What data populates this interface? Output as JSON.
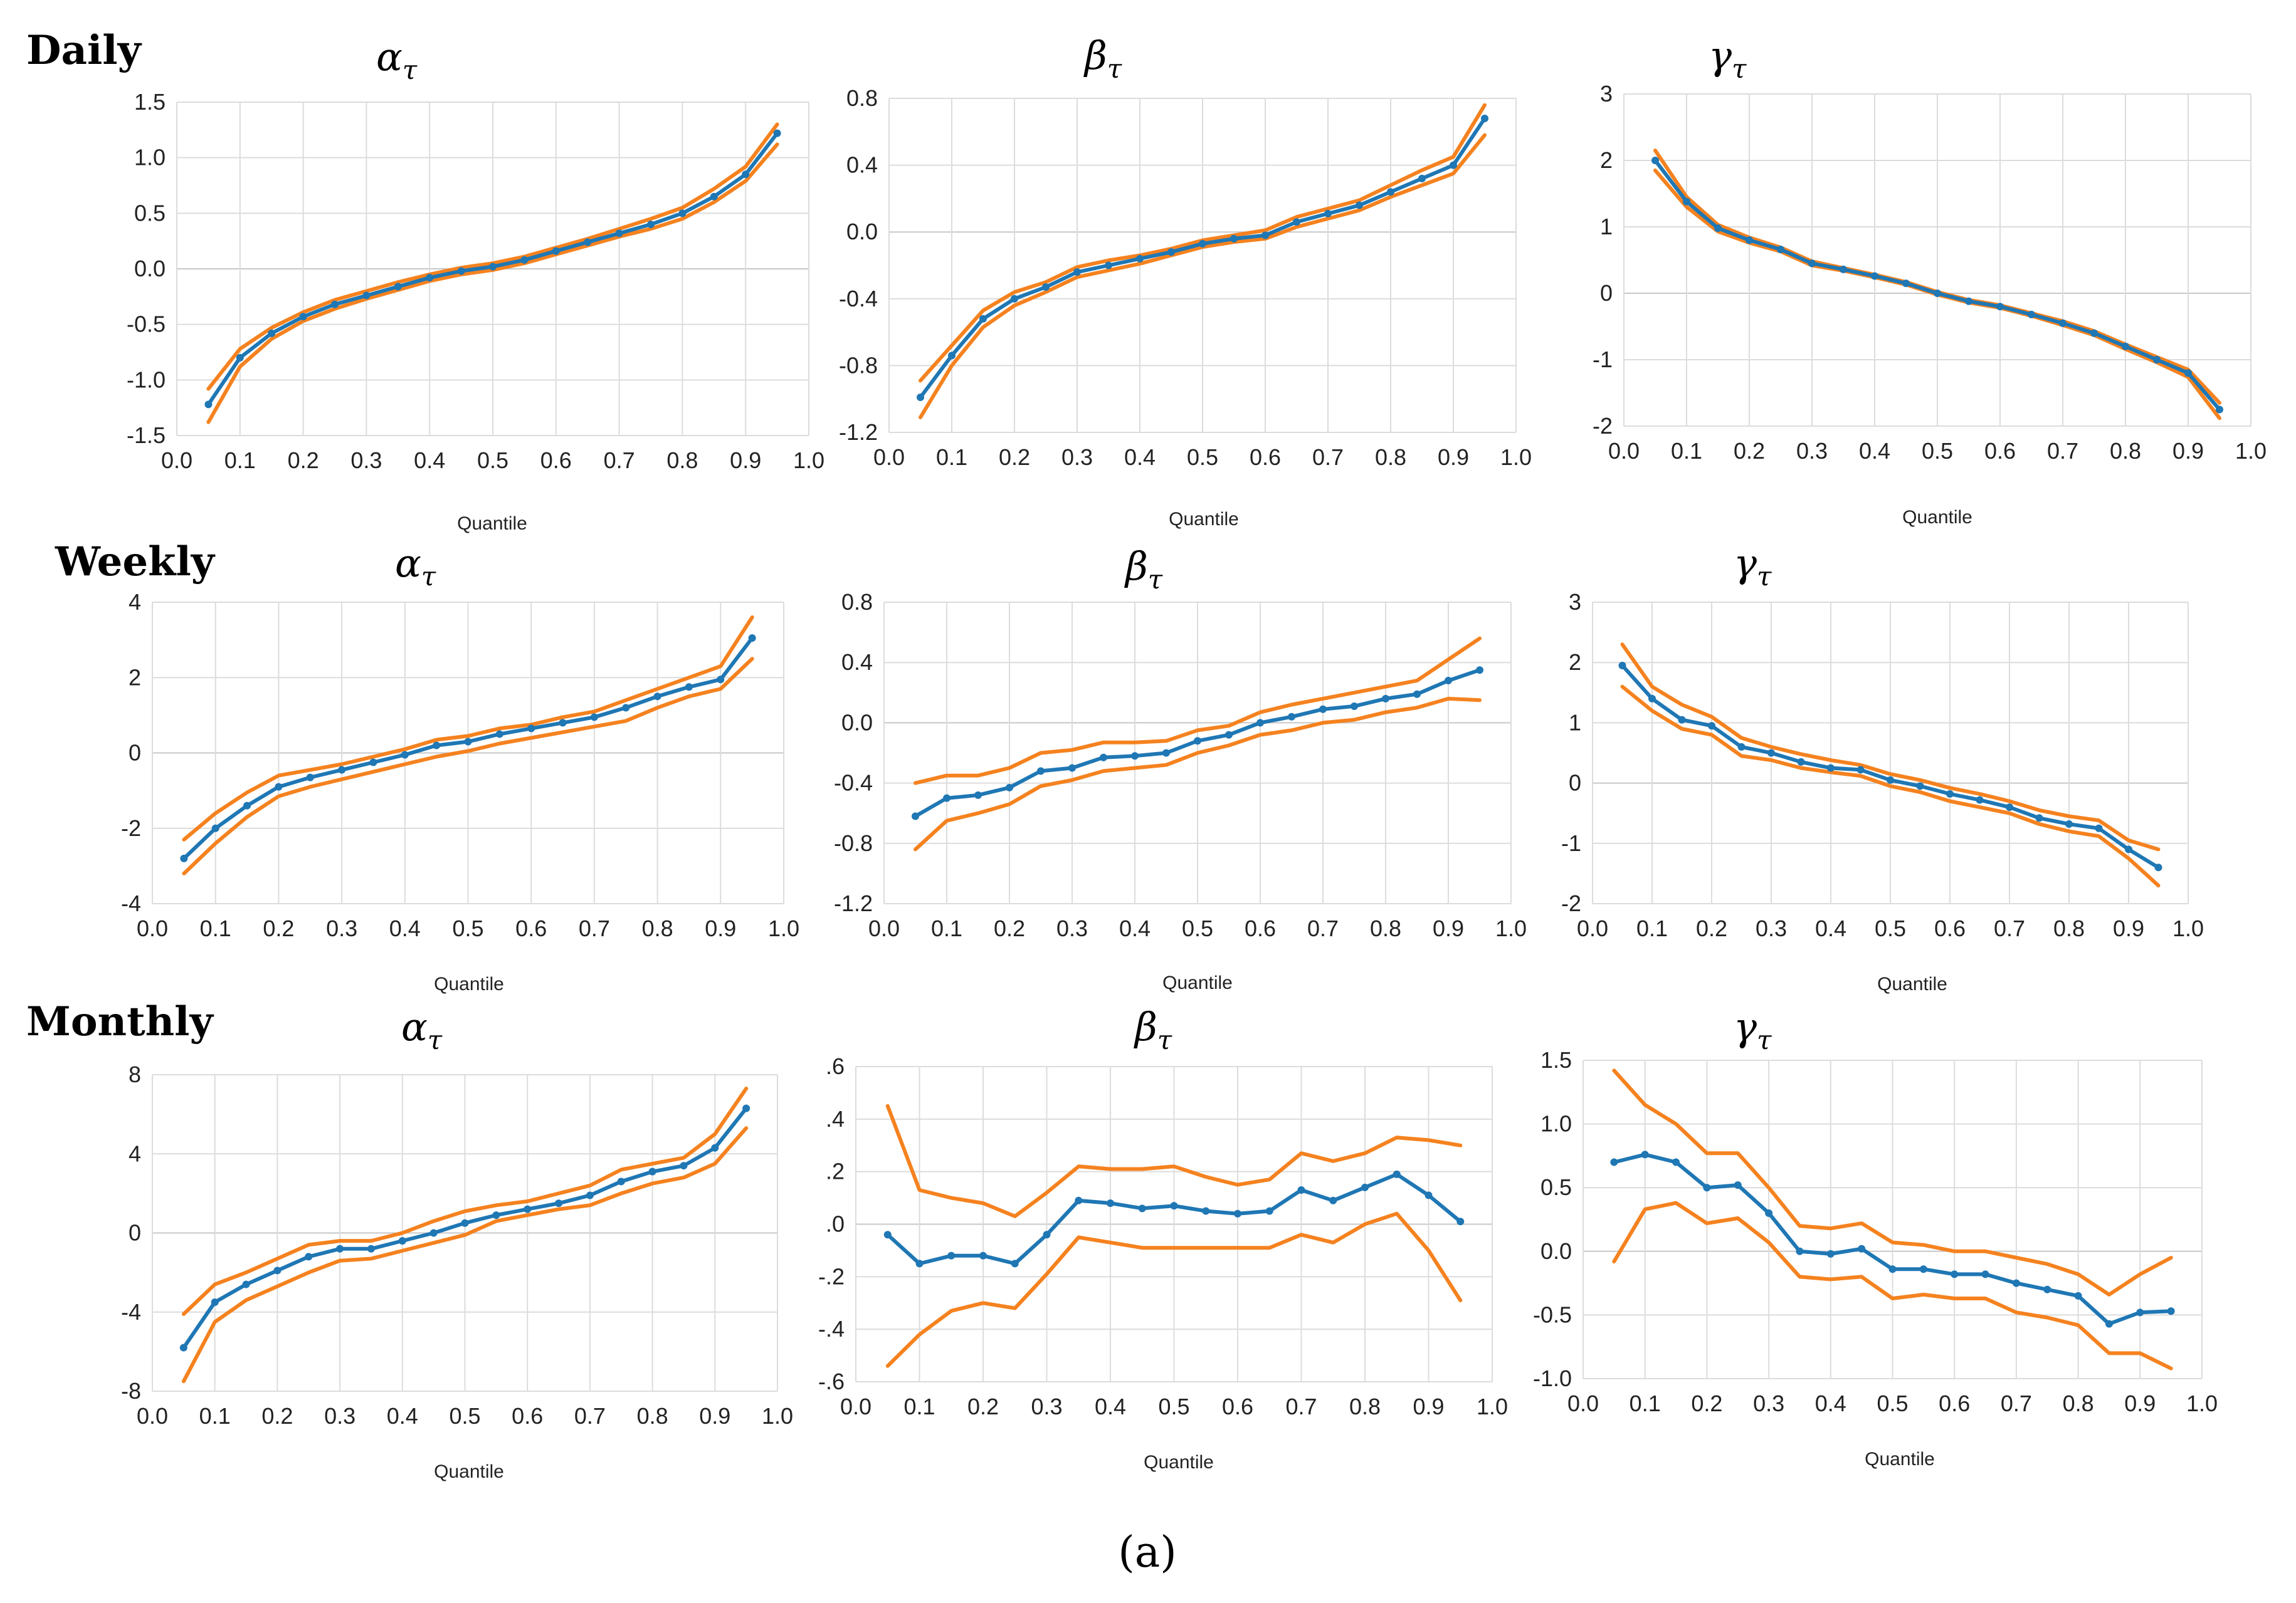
{
  "figure_caption": "(a)",
  "colors": {
    "estimate": "#1F77B4",
    "band": "#F5821F"
  },
  "row_labels": [
    "Daily",
    "Weekly",
    "Monthly"
  ],
  "chart_data": [
    {
      "id": "daily-alpha",
      "row": "Daily",
      "type": "line",
      "title": "α",
      "title_sub": "τ",
      "xlabel": "Quantile",
      "xlim": [
        0,
        1
      ],
      "xticks": [
        "0.0",
        "0.1",
        "0.2",
        "0.3",
        "0.4",
        "0.5",
        "0.6",
        "0.7",
        "0.8",
        "0.9",
        "1.0"
      ],
      "ylim": [
        -1.5,
        1.5
      ],
      "yticks": [
        "-1.5",
        "-1.0",
        "-0.5",
        "0.0",
        "0.5",
        "1.0",
        "1.5"
      ],
      "x": [
        0.05,
        0.1,
        0.15,
        0.2,
        0.25,
        0.3,
        0.35,
        0.4,
        0.45,
        0.5,
        0.55,
        0.6,
        0.65,
        0.7,
        0.75,
        0.8,
        0.85,
        0.9,
        0.95
      ],
      "series": [
        {
          "name": "estimate",
          "values": [
            -1.22,
            -0.8,
            -0.58,
            -0.43,
            -0.32,
            -0.24,
            -0.16,
            -0.08,
            -0.02,
            0.02,
            0.08,
            0.16,
            0.24,
            0.32,
            0.4,
            0.5,
            0.65,
            0.85,
            1.22
          ]
        },
        {
          "name": "upper",
          "values": [
            -1.08,
            -0.72,
            -0.53,
            -0.39,
            -0.28,
            -0.2,
            -0.12,
            -0.05,
            0.01,
            0.05,
            0.11,
            0.19,
            0.27,
            0.36,
            0.45,
            0.55,
            0.72,
            0.92,
            1.3
          ]
        },
        {
          "name": "lower",
          "values": [
            -1.38,
            -0.88,
            -0.63,
            -0.47,
            -0.36,
            -0.27,
            -0.19,
            -0.11,
            -0.05,
            -0.01,
            0.05,
            0.13,
            0.21,
            0.29,
            0.36,
            0.45,
            0.6,
            0.79,
            1.12
          ]
        }
      ]
    },
    {
      "id": "daily-beta",
      "row": "Daily",
      "type": "line",
      "title": "β",
      "title_sub": "τ",
      "xlabel": "Quantile",
      "xlim": [
        0,
        1
      ],
      "xticks": [
        "0.0",
        "0.1",
        "0.2",
        "0.3",
        "0.4",
        "0.5",
        "0.6",
        "0.7",
        "0.8",
        "0.9",
        "1.0"
      ],
      "ylim": [
        -1.2,
        0.8
      ],
      "yticks": [
        "-1.2",
        "-0.8",
        "-0.4",
        "0.0",
        "0.4",
        "0.8"
      ],
      "x": [
        0.05,
        0.1,
        0.15,
        0.2,
        0.25,
        0.3,
        0.35,
        0.4,
        0.45,
        0.5,
        0.55,
        0.6,
        0.65,
        0.7,
        0.75,
        0.8,
        0.85,
        0.9,
        0.95
      ],
      "series": [
        {
          "name": "estimate",
          "values": [
            -0.99,
            -0.74,
            -0.52,
            -0.4,
            -0.33,
            -0.24,
            -0.2,
            -0.16,
            -0.12,
            -0.07,
            -0.04,
            -0.02,
            0.06,
            0.11,
            0.16,
            0.24,
            0.32,
            0.4,
            0.68
          ]
        },
        {
          "name": "upper",
          "values": [
            -0.89,
            -0.68,
            -0.47,
            -0.36,
            -0.3,
            -0.21,
            -0.17,
            -0.14,
            -0.1,
            -0.05,
            -0.02,
            0.01,
            0.09,
            0.14,
            0.19,
            0.28,
            0.37,
            0.45,
            0.76
          ]
        },
        {
          "name": "lower",
          "values": [
            -1.11,
            -0.8,
            -0.57,
            -0.44,
            -0.36,
            -0.27,
            -0.23,
            -0.19,
            -0.14,
            -0.09,
            -0.06,
            -0.04,
            0.03,
            0.08,
            0.13,
            0.21,
            0.28,
            0.35,
            0.58
          ]
        }
      ]
    },
    {
      "id": "daily-gamma",
      "row": "Daily",
      "type": "line",
      "title": "γ",
      "title_sub": "τ",
      "xlabel": "Quantile",
      "xlim": [
        0,
        1
      ],
      "xticks": [
        "0.0",
        "0.1",
        "0.2",
        "0.3",
        "0.4",
        "0.5",
        "0.6",
        "0.7",
        "0.8",
        "0.9",
        "1.0"
      ],
      "ylim": [
        -2,
        3
      ],
      "yticks": [
        "-2",
        "-1",
        "0",
        "1",
        "2",
        "3"
      ],
      "x": [
        0.05,
        0.1,
        0.15,
        0.2,
        0.25,
        0.3,
        0.35,
        0.4,
        0.45,
        0.5,
        0.55,
        0.6,
        0.65,
        0.7,
        0.75,
        0.8,
        0.85,
        0.9,
        0.95
      ],
      "series": [
        {
          "name": "estimate",
          "values": [
            2.0,
            1.38,
            0.98,
            0.8,
            0.66,
            0.45,
            0.36,
            0.26,
            0.15,
            0.0,
            -0.12,
            -0.2,
            -0.32,
            -0.45,
            -0.6,
            -0.8,
            -1.0,
            -1.2,
            -1.75
          ]
        },
        {
          "name": "upper",
          "values": [
            2.15,
            1.45,
            1.03,
            0.84,
            0.69,
            0.48,
            0.38,
            0.28,
            0.17,
            0.02,
            -0.1,
            -0.18,
            -0.3,
            -0.42,
            -0.57,
            -0.77,
            -0.96,
            -1.15,
            -1.65
          ]
        },
        {
          "name": "lower",
          "values": [
            1.85,
            1.3,
            0.93,
            0.76,
            0.63,
            0.42,
            0.34,
            0.24,
            0.13,
            -0.02,
            -0.14,
            -0.22,
            -0.34,
            -0.48,
            -0.63,
            -0.84,
            -1.04,
            -1.26,
            -1.88
          ]
        }
      ]
    },
    {
      "id": "weekly-alpha",
      "row": "Weekly",
      "type": "line",
      "title": "α",
      "title_sub": "τ",
      "xlabel": "Quantile",
      "xlim": [
        0,
        1
      ],
      "xticks": [
        "0.0",
        "0.1",
        "0.2",
        "0.3",
        "0.4",
        "0.5",
        "0.6",
        "0.7",
        "0.8",
        "0.9",
        "1.0"
      ],
      "ylim": [
        -4,
        4
      ],
      "yticks": [
        "-4",
        "-2",
        "0",
        "2",
        "4"
      ],
      "x": [
        0.05,
        0.1,
        0.15,
        0.2,
        0.25,
        0.3,
        0.35,
        0.4,
        0.45,
        0.5,
        0.55,
        0.6,
        0.65,
        0.7,
        0.75,
        0.8,
        0.85,
        0.9,
        0.95
      ],
      "series": [
        {
          "name": "estimate",
          "values": [
            -2.8,
            -2.0,
            -1.4,
            -0.9,
            -0.65,
            -0.45,
            -0.25,
            -0.05,
            0.2,
            0.3,
            0.5,
            0.65,
            0.8,
            0.95,
            1.2,
            1.5,
            1.75,
            1.95,
            3.05
          ]
        },
        {
          "name": "upper",
          "values": [
            -2.3,
            -1.6,
            -1.05,
            -0.6,
            -0.45,
            -0.3,
            -0.1,
            0.1,
            0.35,
            0.45,
            0.65,
            0.75,
            0.95,
            1.1,
            1.4,
            1.7,
            2.0,
            2.3,
            3.6
          ]
        },
        {
          "name": "lower",
          "values": [
            -3.2,
            -2.4,
            -1.7,
            -1.15,
            -0.9,
            -0.7,
            -0.5,
            -0.3,
            -0.1,
            0.05,
            0.25,
            0.4,
            0.55,
            0.7,
            0.85,
            1.2,
            1.5,
            1.7,
            2.5
          ]
        }
      ]
    },
    {
      "id": "weekly-beta",
      "row": "Weekly",
      "type": "line",
      "title": "β",
      "title_sub": "τ",
      "xlabel": "Quantile",
      "xlim": [
        0,
        1
      ],
      "xticks": [
        "0.0",
        "0.1",
        "0.2",
        "0.3",
        "0.4",
        "0.5",
        "0.6",
        "0.7",
        "0.8",
        "0.9",
        "1.0"
      ],
      "ylim": [
        -1.2,
        0.8
      ],
      "yticks": [
        "-1.2",
        "-0.8",
        "-0.4",
        "0.0",
        "0.4",
        "0.8"
      ],
      "x": [
        0.05,
        0.1,
        0.15,
        0.2,
        0.25,
        0.3,
        0.35,
        0.4,
        0.45,
        0.5,
        0.55,
        0.6,
        0.65,
        0.7,
        0.75,
        0.8,
        0.85,
        0.9,
        0.95
      ],
      "series": [
        {
          "name": "estimate",
          "values": [
            -0.62,
            -0.5,
            -0.48,
            -0.43,
            -0.32,
            -0.3,
            -0.23,
            -0.22,
            -0.2,
            -0.12,
            -0.08,
            0.0,
            0.04,
            0.09,
            0.11,
            0.16,
            0.19,
            0.28,
            0.35
          ]
        },
        {
          "name": "upper",
          "values": [
            -0.4,
            -0.35,
            -0.35,
            -0.3,
            -0.2,
            -0.18,
            -0.13,
            -0.13,
            -0.12,
            -0.05,
            -0.02,
            0.07,
            0.12,
            0.16,
            0.2,
            0.24,
            0.28,
            0.42,
            0.56
          ]
        },
        {
          "name": "lower",
          "values": [
            -0.84,
            -0.65,
            -0.6,
            -0.54,
            -0.42,
            -0.38,
            -0.32,
            -0.3,
            -0.28,
            -0.2,
            -0.15,
            -0.08,
            -0.05,
            0.0,
            0.02,
            0.07,
            0.1,
            0.16,
            0.15
          ]
        }
      ]
    },
    {
      "id": "weekly-gamma",
      "row": "Weekly",
      "type": "line",
      "title": "γ",
      "title_sub": "τ",
      "xlabel": "Quantile",
      "xlim": [
        0,
        1
      ],
      "xticks": [
        "0.0",
        "0.1",
        "0.2",
        "0.3",
        "0.4",
        "0.5",
        "0.6",
        "0.7",
        "0.8",
        "0.9",
        "1.0"
      ],
      "ylim": [
        -2,
        3
      ],
      "yticks": [
        "-2",
        "-1",
        "0",
        "1",
        "2",
        "3"
      ],
      "x": [
        0.05,
        0.1,
        0.15,
        0.2,
        0.25,
        0.3,
        0.35,
        0.4,
        0.45,
        0.5,
        0.55,
        0.6,
        0.65,
        0.7,
        0.75,
        0.8,
        0.85,
        0.9,
        0.95
      ],
      "series": [
        {
          "name": "estimate",
          "values": [
            1.95,
            1.4,
            1.05,
            0.95,
            0.6,
            0.5,
            0.35,
            0.25,
            0.22,
            0.05,
            -0.05,
            -0.18,
            -0.28,
            -0.4,
            -0.58,
            -0.68,
            -0.75,
            -1.1,
            -1.4
          ]
        },
        {
          "name": "upper",
          "values": [
            2.3,
            1.6,
            1.3,
            1.1,
            0.75,
            0.6,
            0.48,
            0.38,
            0.3,
            0.15,
            0.05,
            -0.08,
            -0.18,
            -0.3,
            -0.45,
            -0.55,
            -0.62,
            -0.95,
            -1.1
          ]
        },
        {
          "name": "lower",
          "values": [
            1.6,
            1.2,
            0.9,
            0.8,
            0.45,
            0.38,
            0.25,
            0.18,
            0.12,
            -0.05,
            -0.15,
            -0.3,
            -0.4,
            -0.5,
            -0.68,
            -0.8,
            -0.88,
            -1.25,
            -1.7
          ]
        }
      ]
    },
    {
      "id": "monthly-alpha",
      "row": "Monthly",
      "type": "line",
      "title": "α",
      "title_sub": "τ",
      "xlabel": "Quantile",
      "xlim": [
        0,
        1
      ],
      "xticks": [
        "0.0",
        "0.1",
        "0.2",
        "0.3",
        "0.4",
        "0.5",
        "0.6",
        "0.7",
        "0.8",
        "0.9",
        "1.0"
      ],
      "ylim": [
        -8,
        8
      ],
      "yticks": [
        "-8",
        "-4",
        "0",
        "4",
        "8"
      ],
      "x": [
        0.05,
        0.1,
        0.15,
        0.2,
        0.25,
        0.3,
        0.35,
        0.4,
        0.45,
        0.5,
        0.55,
        0.6,
        0.65,
        0.7,
        0.75,
        0.8,
        0.85,
        0.9,
        0.95
      ],
      "series": [
        {
          "name": "estimate",
          "values": [
            -5.8,
            -3.5,
            -2.6,
            -1.9,
            -1.2,
            -0.8,
            -0.8,
            -0.4,
            0.0,
            0.5,
            0.9,
            1.2,
            1.5,
            1.9,
            2.6,
            3.1,
            3.4,
            4.3,
            6.3
          ]
        },
        {
          "name": "upper",
          "values": [
            -4.1,
            -2.6,
            -2.0,
            -1.3,
            -0.6,
            -0.4,
            -0.4,
            0.0,
            0.6,
            1.1,
            1.4,
            1.6,
            2.0,
            2.4,
            3.2,
            3.5,
            3.8,
            5.0,
            7.3
          ]
        },
        {
          "name": "lower",
          "values": [
            -7.5,
            -4.5,
            -3.4,
            -2.7,
            -2.0,
            -1.4,
            -1.3,
            -0.9,
            -0.5,
            -0.1,
            0.6,
            0.9,
            1.2,
            1.4,
            2.0,
            2.5,
            2.8,
            3.5,
            5.3
          ]
        }
      ]
    },
    {
      "id": "monthly-beta",
      "row": "Monthly",
      "type": "line",
      "title": "β",
      "title_sub": "τ",
      "xlabel": "Quantile",
      "xlim": [
        0,
        1
      ],
      "xticks": [
        "0.0",
        "0.1",
        "0.2",
        "0.3",
        "0.4",
        "0.5",
        "0.6",
        "0.7",
        "0.8",
        "0.9",
        "1.0"
      ],
      "ylim": [
        -0.6,
        0.6
      ],
      "yticks": [
        "-.6",
        "-.4",
        "-.2",
        ".0",
        ".2",
        ".4",
        ".6"
      ],
      "x": [
        0.05,
        0.1,
        0.15,
        0.2,
        0.25,
        0.3,
        0.35,
        0.4,
        0.45,
        0.5,
        0.55,
        0.6,
        0.65,
        0.7,
        0.75,
        0.8,
        0.85,
        0.9,
        0.95
      ],
      "series": [
        {
          "name": "estimate",
          "values": [
            -0.04,
            -0.15,
            -0.12,
            -0.12,
            -0.15,
            -0.04,
            0.09,
            0.08,
            0.06,
            0.07,
            0.05,
            0.04,
            0.05,
            0.13,
            0.09,
            0.14,
            0.19,
            0.11,
            0.01
          ]
        },
        {
          "name": "upper",
          "values": [
            0.45,
            0.13,
            0.1,
            0.08,
            0.03,
            0.12,
            0.22,
            0.21,
            0.21,
            0.22,
            0.18,
            0.15,
            0.17,
            0.27,
            0.24,
            0.27,
            0.33,
            0.32,
            0.3
          ]
        },
        {
          "name": "lower",
          "values": [
            -0.54,
            -0.42,
            -0.33,
            -0.3,
            -0.32,
            -0.19,
            -0.05,
            -0.07,
            -0.09,
            -0.09,
            -0.09,
            -0.09,
            -0.09,
            -0.04,
            -0.07,
            0.0,
            0.04,
            -0.1,
            -0.29
          ]
        }
      ]
    },
    {
      "id": "monthly-gamma",
      "row": "Monthly",
      "type": "line",
      "title": "γ",
      "title_sub": "τ",
      "xlabel": "Quantile",
      "xlim": [
        0,
        1
      ],
      "xticks": [
        "0.0",
        "0.1",
        "0.2",
        "0.3",
        "0.4",
        "0.5",
        "0.6",
        "0.7",
        "0.8",
        "0.9",
        "1.0"
      ],
      "ylim": [
        -1.0,
        1.5
      ],
      "yticks": [
        "-1.0",
        "-0.5",
        "0.0",
        "0.5",
        "1.0",
        "1.5"
      ],
      "x": [
        0.05,
        0.1,
        0.15,
        0.2,
        0.25,
        0.3,
        0.35,
        0.4,
        0.45,
        0.5,
        0.55,
        0.6,
        0.65,
        0.7,
        0.75,
        0.8,
        0.85,
        0.9,
        0.95
      ],
      "series": [
        {
          "name": "estimate",
          "values": [
            0.7,
            0.76,
            0.7,
            0.5,
            0.52,
            0.3,
            0.0,
            -0.02,
            0.02,
            -0.14,
            -0.14,
            -0.18,
            -0.18,
            -0.25,
            -0.3,
            -0.35,
            -0.57,
            -0.48,
            -0.47
          ]
        },
        {
          "name": "upper",
          "values": [
            1.42,
            1.15,
            1.0,
            0.77,
            0.77,
            0.5,
            0.2,
            0.18,
            0.22,
            0.07,
            0.05,
            0.0,
            0.0,
            -0.05,
            -0.1,
            -0.18,
            -0.34,
            -0.18,
            -0.05
          ]
        },
        {
          "name": "lower",
          "values": [
            -0.08,
            0.33,
            0.38,
            0.22,
            0.26,
            0.07,
            -0.2,
            -0.22,
            -0.2,
            -0.37,
            -0.34,
            -0.37,
            -0.37,
            -0.48,
            -0.52,
            -0.58,
            -0.8,
            -0.8,
            -0.92
          ]
        }
      ]
    }
  ]
}
